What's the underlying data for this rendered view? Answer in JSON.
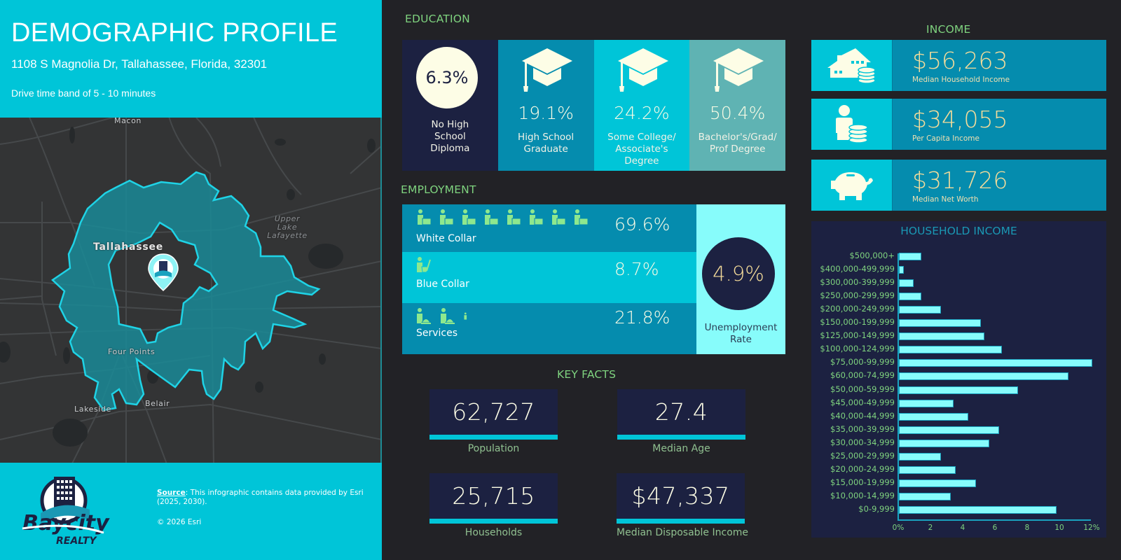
{
  "header": {
    "title": "DEMOGRAPHIC PROFILE",
    "address": "1108 S Magnolia Dr, Tallahassee, Florida, 32301",
    "drive_time": "Drive time band of 5 - 10 minutes"
  },
  "map": {
    "labels": {
      "macon": "Macon",
      "tallahassee": "Tallahassee",
      "upper_lake_1": "Upper",
      "upper_lake_2": "Lake",
      "upper_lake_3": "Lafayette",
      "four_points": "Four Points",
      "lakeside": "Lakeside",
      "belair": "Belair"
    },
    "marker_icon": "location-pin-icon"
  },
  "footer": {
    "logo_text_top": "Baycity",
    "logo_text_bottom": "REALTY",
    "source_label": "Source",
    "source_text": ": This infographic contains data provided by Esri (2025, 2030).",
    "copyright": "© 2026 Esri"
  },
  "education": {
    "title": "EDUCATION",
    "items": [
      {
        "value": "6.3%",
        "label": "No High School Diploma",
        "color": "#1c2141"
      },
      {
        "value": "19.1%",
        "label": "High School Graduate",
        "color": "#058cae"
      },
      {
        "value": "24.2%",
        "label": "Some College/ Associate's Degree",
        "color": "#00c5d8"
      },
      {
        "value": "50.4%",
        "label": "Bachelor's/Grad/ Prof Degree",
        "color": "#5fb3b3"
      }
    ]
  },
  "employment": {
    "title": "EMPLOYMENT",
    "rows": [
      {
        "label": "White Collar",
        "value": "69.6%",
        "icon_count": 8,
        "icon": "office-worker-icon"
      },
      {
        "label": "Blue Collar",
        "value": "8.7%",
        "icon_count": 1,
        "icon": "janitor-icon"
      },
      {
        "label": "Services",
        "value": "21.8%",
        "icon_count": 3,
        "icon": "service-worker-icon"
      }
    ],
    "unemployment": {
      "value": "4.9%",
      "label": "Unemployment Rate"
    }
  },
  "key_facts": {
    "title": "KEY FACTS",
    "items": [
      {
        "value": "62,727",
        "label": "Population"
      },
      {
        "value": "27.4",
        "label": "Median Age"
      },
      {
        "value": "25,715",
        "label": "Households"
      },
      {
        "value": "$47,337",
        "label": "Median Disposable Income"
      }
    ]
  },
  "income": {
    "title": "INCOME",
    "items": [
      {
        "value": "$56,263",
        "label": "Median Household Income",
        "icon": "house-coins-icon"
      },
      {
        "value": "$34,055",
        "label": "Per Capita Income",
        "icon": "person-coins-icon"
      },
      {
        "value": "$31,726",
        "label": "Median Net Worth",
        "icon": "piggy-bank-icon"
      }
    ]
  },
  "household_income": {
    "title": "HOUSEHOLD INCOME"
  },
  "chart_data": {
    "type": "bar",
    "orientation": "horizontal",
    "title": "HOUSEHOLD INCOME",
    "xlabel": "",
    "ylabel": "",
    "categories": [
      "$500,000+",
      "$400,000-499,999",
      "$300,000-399,999",
      "$250,000-299,999",
      "$200,000-249,999",
      "$150,000-199,999",
      "$125,000-149,999",
      "$100,000-124,999",
      "$75,000-99,999",
      "$60,000-74,999",
      "$50,000-59,999",
      "$45,000-49,999",
      "$40,000-44,999",
      "$35,000-39,999",
      "$30,000-34,999",
      "$25,000-29,999",
      "$20,000-24,999",
      "$15,000-19,999",
      "$10,000-14,999",
      "$0-9,999"
    ],
    "values": [
      1.4,
      0.3,
      0.9,
      1.4,
      2.6,
      5.1,
      5.3,
      6.4,
      12.0,
      10.5,
      7.4,
      3.4,
      4.3,
      6.2,
      5.6,
      2.6,
      3.5,
      4.8,
      3.2,
      9.8
    ],
    "xlim": [
      0,
      12
    ],
    "xticks": [
      "0%",
      "2",
      "4",
      "6",
      "8",
      "10",
      "12%"
    ],
    "grid": false,
    "legend": "none",
    "bar_color": "#87fcfb"
  }
}
